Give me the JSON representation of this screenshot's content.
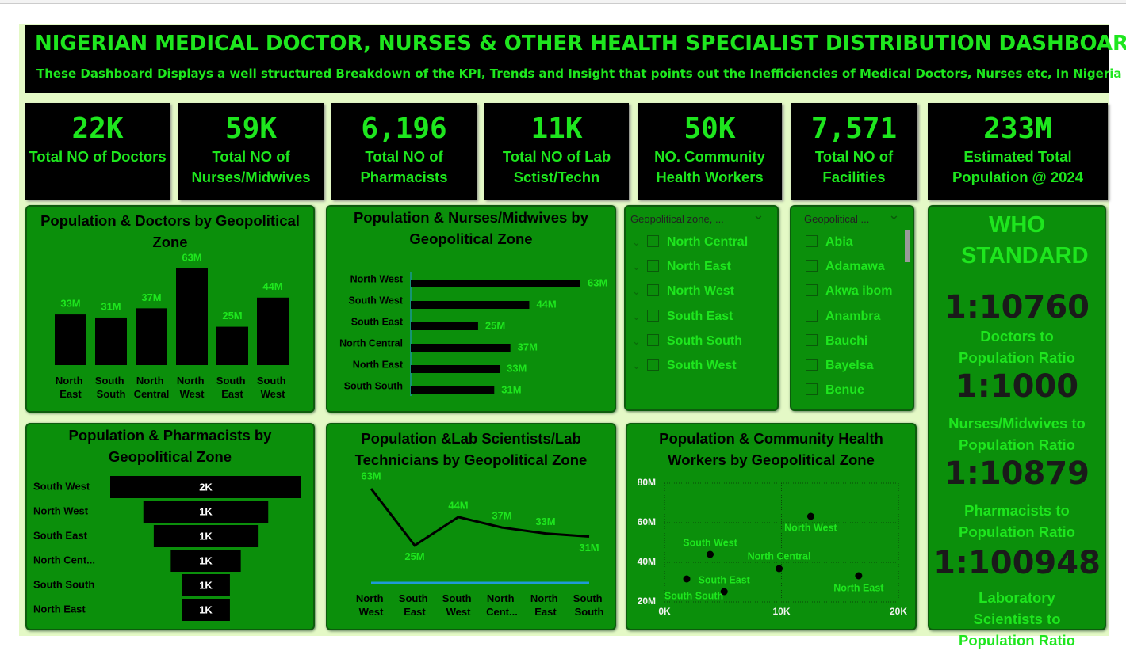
{
  "header": {
    "title": "NIGERIAN MEDICAL DOCTOR, NURSES & OTHER HEALTH SPECIALIST DISTRIBUTION DASHBOARD",
    "subtitle": "These Dashboard Displays a well structured Breakdown of the KPI, Trends and Insight that points out the Inefficiencies of Medical Doctors, Nurses etc, In Nigeria"
  },
  "kpis": [
    {
      "value": "22K",
      "label": "Total NO of Doctors"
    },
    {
      "value": "59K",
      "label": "Total NO of Nurses/Midwives"
    },
    {
      "value": "6,196",
      "label": "Total NO of Pharmacists"
    },
    {
      "value": "11K",
      "label": "Total NO of Lab Sctist/Techn"
    },
    {
      "value": "50K",
      "label": "NO. Community Health Workers"
    },
    {
      "value": "7,571",
      "label": "Total NO of Facilities"
    },
    {
      "value": "233M",
      "label": "Estimated Total Population @ 2024"
    }
  ],
  "slicers": [
    {
      "header": "Geopolitical zone, ...",
      "items": [
        "North Central",
        "North East",
        "North West",
        "South East",
        "South South",
        "South West"
      ]
    },
    {
      "header": "Geopolitical ...",
      "items": [
        "Abia",
        "Adamawa",
        "Akwa ibom",
        "Anambra",
        "Bauchi",
        "Bayelsa",
        "Benue"
      ]
    }
  ],
  "who_standard": {
    "title": "WHO STANDARD",
    "ratios": [
      {
        "value": "1:10760",
        "label": "Doctors to Population Ratio"
      },
      {
        "value": "1:1000",
        "label": "Nurses/Midwives to Population Ratio"
      },
      {
        "value": "1:10879",
        "label": "Pharmacists to Population Ratio"
      },
      {
        "value": "1:100948",
        "label": "Laboratory Scientists to Population Ratio"
      }
    ]
  },
  "chart_data": [
    {
      "type": "bar",
      "title": "Population & Doctors by Geopolitical Zone",
      "categories": [
        "North East",
        "South South",
        "North Central",
        "North West",
        "South East",
        "South West"
      ],
      "values": [
        33,
        31,
        37,
        63,
        25,
        44
      ],
      "value_labels": [
        "33M",
        "31M",
        "37M",
        "63M",
        "25M",
        "44M"
      ],
      "color": "#000000"
    },
    {
      "type": "hbar",
      "title": "Population & Nurses/Midwives by Geopolitical Zone",
      "categories": [
        "North West",
        "South West",
        "South East",
        "North Central",
        "North East",
        "South South"
      ],
      "values": [
        63,
        44,
        25,
        37,
        33,
        31
      ],
      "value_labels": [
        "63M",
        "44M",
        "25M",
        "37M",
        "33M",
        "31M"
      ],
      "color": "#000000"
    },
    {
      "type": "funnel",
      "title": "Population & Pharmacists by Geopolitical Zone",
      "categories": [
        "South West",
        "North West",
        "South East",
        "North Cent...",
        "South South",
        "North East"
      ],
      "values": [
        2.02,
        1.32,
        1.1,
        0.74,
        0.51,
        0.51
      ],
      "value_labels": [
        "2K",
        "1K",
        "1K",
        "1K",
        "1K",
        "1K"
      ],
      "color": "#000000"
    },
    {
      "type": "line",
      "title": "Population &Lab Scientists/Lab Technicians by Geopolitical Zone",
      "categories": [
        "North West",
        "South East",
        "South West",
        "North Cent...",
        "North East",
        "South South"
      ],
      "series": [
        {
          "color": "#000000",
          "values": [
            63,
            25,
            44,
            37,
            33,
            31
          ],
          "value_labels": [
            "63M",
            "25M",
            "44M",
            "37M",
            "33M",
            "31M"
          ]
        },
        {
          "color": "#1f9bd8",
          "values": [
            0,
            0,
            0,
            0,
            0,
            0
          ]
        }
      ]
    },
    {
      "type": "scatter",
      "title": "Population & Community Health Workers by Geopolitical Zone",
      "point_labels": [
        "North West",
        "South West",
        "North Central",
        "South South",
        "South East",
        "North East"
      ],
      "x": [
        12.5,
        3.9,
        9.8,
        1.9,
        5.1,
        16.6
      ],
      "values": [
        63.2,
        44,
        36.8,
        31.6,
        25.2,
        33.2
      ],
      "color": "#000000",
      "xlim": [
        0,
        20
      ],
      "xticks": [
        {
          "value": 0,
          "label": "0K"
        },
        {
          "value": 10,
          "label": "10K"
        },
        {
          "value": 20,
          "label": "20K"
        }
      ],
      "ylim": [
        20,
        80
      ],
      "yticks": [
        {
          "value": 20,
          "label": "20M"
        },
        {
          "value": 40,
          "label": "40M"
        },
        {
          "value": 60,
          "label": "60M"
        },
        {
          "value": 80,
          "label": "80M"
        }
      ],
      "grid": true
    }
  ]
}
